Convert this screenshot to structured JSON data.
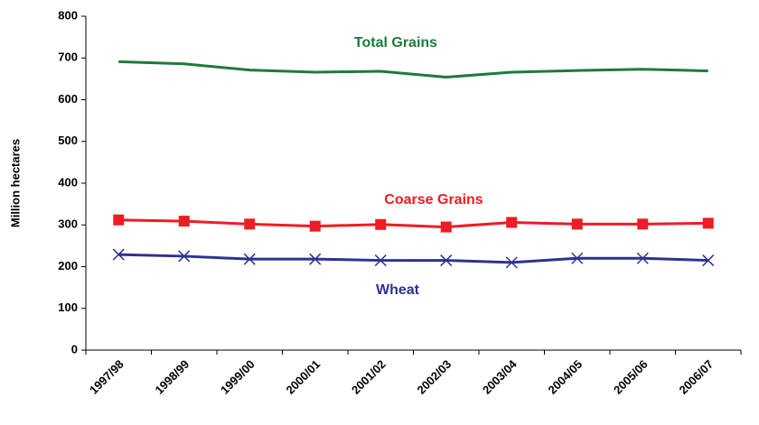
{
  "chart_data": {
    "type": "line",
    "y_label": "Million hectares",
    "categories": [
      "1997/98",
      "1998/99",
      "1999/00",
      "2000/01",
      "2001/02",
      "2002/03",
      "2003/04",
      "2004/05",
      "2005/06",
      "2006/07"
    ],
    "series": [
      {
        "name": "Total Grains",
        "color": "#1e7b3a",
        "marker": "none",
        "values": [
          691,
          686,
          671,
          666,
          668,
          654,
          666,
          670,
          673,
          669
        ]
      },
      {
        "name": "Coarse Grains",
        "color": "#ee1c24",
        "marker": "square",
        "values": [
          312,
          309,
          302,
          297,
          301,
          295,
          306,
          302,
          302,
          304
        ]
      },
      {
        "name": "Wheat",
        "color": "#2e3192",
        "marker": "x",
        "values": [
          229,
          225,
          218,
          218,
          215,
          215,
          210,
          220,
          220,
          215
        ]
      }
    ],
    "ylim": [
      0,
      800
    ],
    "yticks": [
      0,
      100,
      200,
      300,
      400,
      500,
      600,
      700,
      800
    ],
    "grid": false
  }
}
